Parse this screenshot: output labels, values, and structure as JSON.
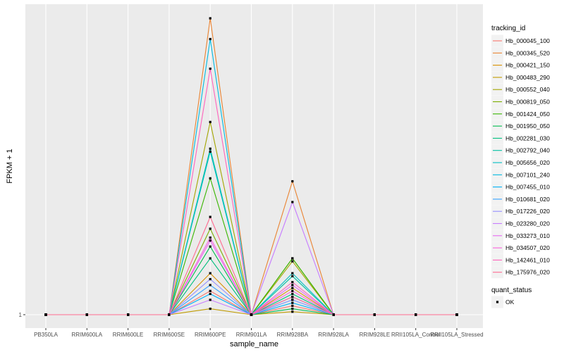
{
  "chart_data": {
    "type": "line",
    "title": "",
    "xlabel": "sample_name",
    "ylabel": "FPKM + 1",
    "categories": [
      "PB350LA",
      "RRIM600LA",
      "RRIM600LE",
      "RRIM600SE",
      "RRIM600PE",
      "RRIM901LA",
      "RRIM928BA",
      "RRIM928LA",
      "RRIM928LE",
      "RRII105LA_Control",
      "RRII105LA_Stressed"
    ],
    "y_tick_labels": [
      {
        "value": 1,
        "label": "1"
      }
    ],
    "ylim": [
      0,
      1.0
    ],
    "grid": true,
    "legend_title": "tracking_id",
    "legend_position": "right",
    "shape_legend": {
      "title": "quant_status",
      "items": [
        "OK"
      ]
    },
    "series": [
      {
        "name": "Hb_000045_100",
        "color": "#F8766D",
        "values": [
          0,
          0,
          0,
          0,
          0.08,
          0,
          0.03,
          0,
          0,
          0,
          0
        ]
      },
      {
        "name": "Hb_000345_520",
        "color": "#EA8331",
        "values": [
          0,
          0,
          0,
          0,
          1.0,
          0,
          0.45,
          0,
          0,
          0,
          0
        ]
      },
      {
        "name": "Hb_000421_150",
        "color": "#D89000",
        "values": [
          0,
          0,
          0,
          0,
          0.14,
          0,
          0.09,
          0,
          0,
          0,
          0
        ]
      },
      {
        "name": "Hb_000483_290",
        "color": "#C09B00",
        "values": [
          0,
          0,
          0,
          0,
          0.02,
          0,
          0.01,
          0,
          0,
          0,
          0
        ]
      },
      {
        "name": "Hb_000552_040",
        "color": "#A3A500",
        "values": [
          0,
          0,
          0,
          0,
          0.65,
          0,
          0.18,
          0,
          0,
          0,
          0
        ]
      },
      {
        "name": "Hb_000819_050",
        "color": "#7CAE00",
        "values": [
          0,
          0,
          0,
          0,
          0.29,
          0,
          0.19,
          0,
          0,
          0,
          0
        ]
      },
      {
        "name": "Hb_001424_050",
        "color": "#39B600",
        "values": [
          0,
          0,
          0,
          0,
          0.46,
          0,
          0.19,
          0,
          0,
          0,
          0
        ]
      },
      {
        "name": "Hb_001950_050",
        "color": "#00BB4E",
        "values": [
          0,
          0,
          0,
          0,
          0.23,
          0,
          0.02,
          0,
          0,
          0,
          0
        ]
      },
      {
        "name": "Hb_002281_030",
        "color": "#00BF7D",
        "values": [
          0,
          0,
          0,
          0,
          0.19,
          0,
          0.07,
          0,
          0,
          0,
          0
        ]
      },
      {
        "name": "Hb_002792_040",
        "color": "#00C1A3",
        "values": [
          0,
          0,
          0,
          0,
          0.56,
          0,
          0.13,
          0,
          0,
          0,
          0
        ]
      },
      {
        "name": "Hb_005656_020",
        "color": "#00BFC4",
        "values": [
          0,
          0,
          0,
          0,
          0.55,
          0,
          0.14,
          0,
          0,
          0,
          0
        ]
      },
      {
        "name": "Hb_007101_240",
        "color": "#00BAE0",
        "values": [
          0,
          0,
          0,
          0,
          0.93,
          0,
          0.05,
          0,
          0,
          0,
          0
        ]
      },
      {
        "name": "Hb_007455_010",
        "color": "#00B0F6",
        "values": [
          0,
          0,
          0,
          0,
          0.07,
          0,
          0.04,
          0,
          0,
          0,
          0
        ]
      },
      {
        "name": "Hb_010681_020",
        "color": "#35A2FF",
        "values": [
          0,
          0,
          0,
          0,
          0.1,
          0,
          0.06,
          0,
          0,
          0,
          0
        ]
      },
      {
        "name": "Hb_017226_020",
        "color": "#9590FF",
        "values": [
          0,
          0,
          0,
          0,
          0.12,
          0,
          0.05,
          0,
          0,
          0,
          0
        ]
      },
      {
        "name": "Hb_023280_020",
        "color": "#C77CFF",
        "values": [
          0,
          0,
          0,
          0,
          0.05,
          0,
          0.38,
          0,
          0,
          0,
          0
        ]
      },
      {
        "name": "Hb_033273_010",
        "color": "#E76BF3",
        "values": [
          0,
          0,
          0,
          0,
          0.25,
          0,
          0.1,
          0,
          0,
          0,
          0
        ]
      },
      {
        "name": "Hb_034507_020",
        "color": "#FA62DB",
        "values": [
          0,
          0,
          0,
          0,
          0.26,
          0,
          0.08,
          0,
          0,
          0,
          0
        ]
      },
      {
        "name": "Hb_142461_010",
        "color": "#FF62BC",
        "values": [
          0,
          0,
          0,
          0,
          0.83,
          0,
          0.11,
          0,
          0,
          0,
          0
        ]
      },
      {
        "name": "Hb_175976_020",
        "color": "#FF6C91",
        "values": [
          0,
          0,
          0,
          0,
          0.33,
          0,
          0.06,
          0,
          0,
          0,
          0
        ]
      }
    ]
  }
}
